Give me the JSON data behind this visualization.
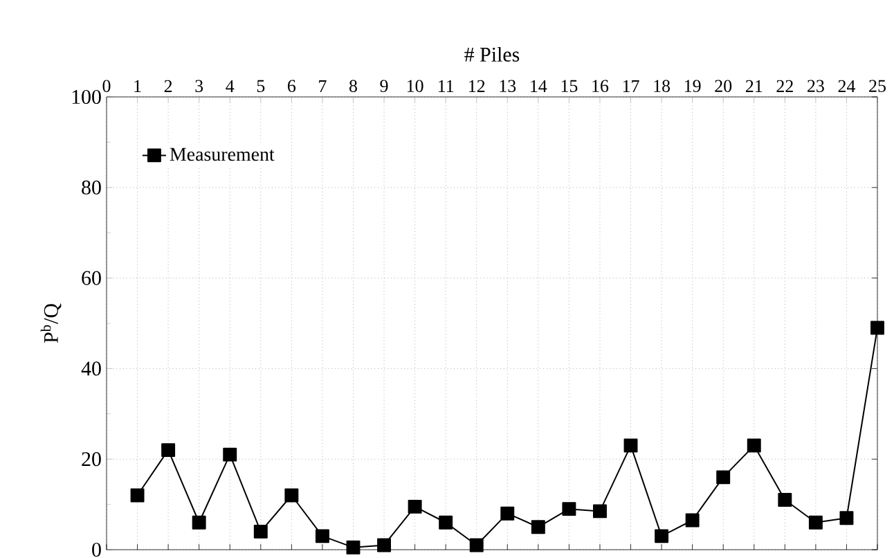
{
  "chart_data": {
    "type": "line",
    "xlabel": "# Piles",
    "ylabel": "P$^{b}$/Q",
    "x": [
      1,
      2,
      3,
      4,
      5,
      6,
      7,
      8,
      9,
      10,
      11,
      12,
      13,
      14,
      15,
      16,
      17,
      18,
      19,
      20,
      21,
      22,
      23,
      24,
      25
    ],
    "series": [
      {
        "name": "Measurement",
        "color": "#000000",
        "values": [
          12,
          22,
          6,
          21,
          4,
          12,
          3,
          0.5,
          1,
          9.5,
          6,
          1,
          8,
          5,
          9,
          8.5,
          23,
          3,
          6.5,
          16,
          23,
          11,
          6,
          7,
          49
        ]
      }
    ],
    "xlim": [
      0,
      25
    ],
    "xticks": [
      0,
      1,
      2,
      3,
      4,
      5,
      6,
      7,
      8,
      9,
      10,
      11,
      12,
      13,
      14,
      15,
      16,
      17,
      18,
      19,
      20,
      21,
      22,
      23,
      24,
      25
    ],
    "ylim": [
      0,
      100
    ],
    "yticks": [
      0,
      20,
      40,
      60,
      80,
      100
    ],
    "grid": true,
    "legend": "top left",
    "marker": "square",
    "line_style": "solid"
  }
}
